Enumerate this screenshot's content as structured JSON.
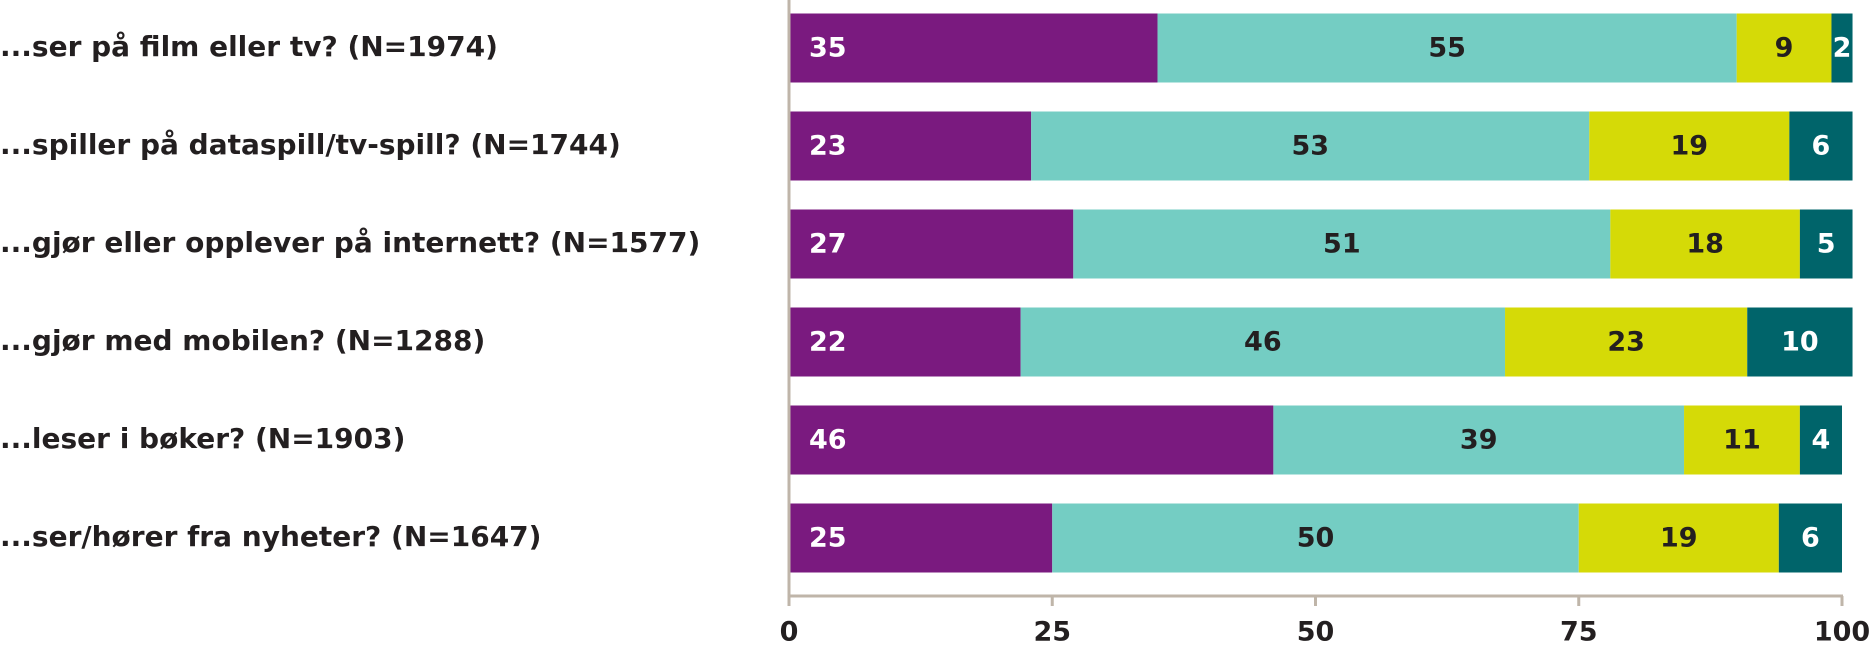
{
  "chart_data": {
    "type": "stacked-bar-horizontal",
    "categories": [
      "...ser på film eller tv? (N=1974)",
      "...spiller på dataspill/tv-spill? (N=1744)",
      "...gjør eller opplever på internett? (N=1577)",
      "...gjør med mobilen? (N=1288)",
      "...leser i bøker? (N=1903)",
      "...ser/hører fra nyheter? (N=1647)"
    ],
    "series": [
      {
        "color": "#7a1a7f",
        "values": [
          35,
          23,
          27,
          22,
          46,
          25
        ]
      },
      {
        "color": "#74cdc3",
        "values": [
          55,
          53,
          51,
          46,
          39,
          50
        ]
      },
      {
        "color": "#d5da07",
        "values": [
          9,
          19,
          18,
          23,
          11,
          19
        ]
      },
      {
        "color": "#00646a",
        "values": [
          2,
          6,
          5,
          10,
          4,
          6
        ]
      }
    ],
    "xlim": [
      0,
      100
    ],
    "xticks": [
      0,
      25,
      50,
      75,
      100
    ]
  }
}
